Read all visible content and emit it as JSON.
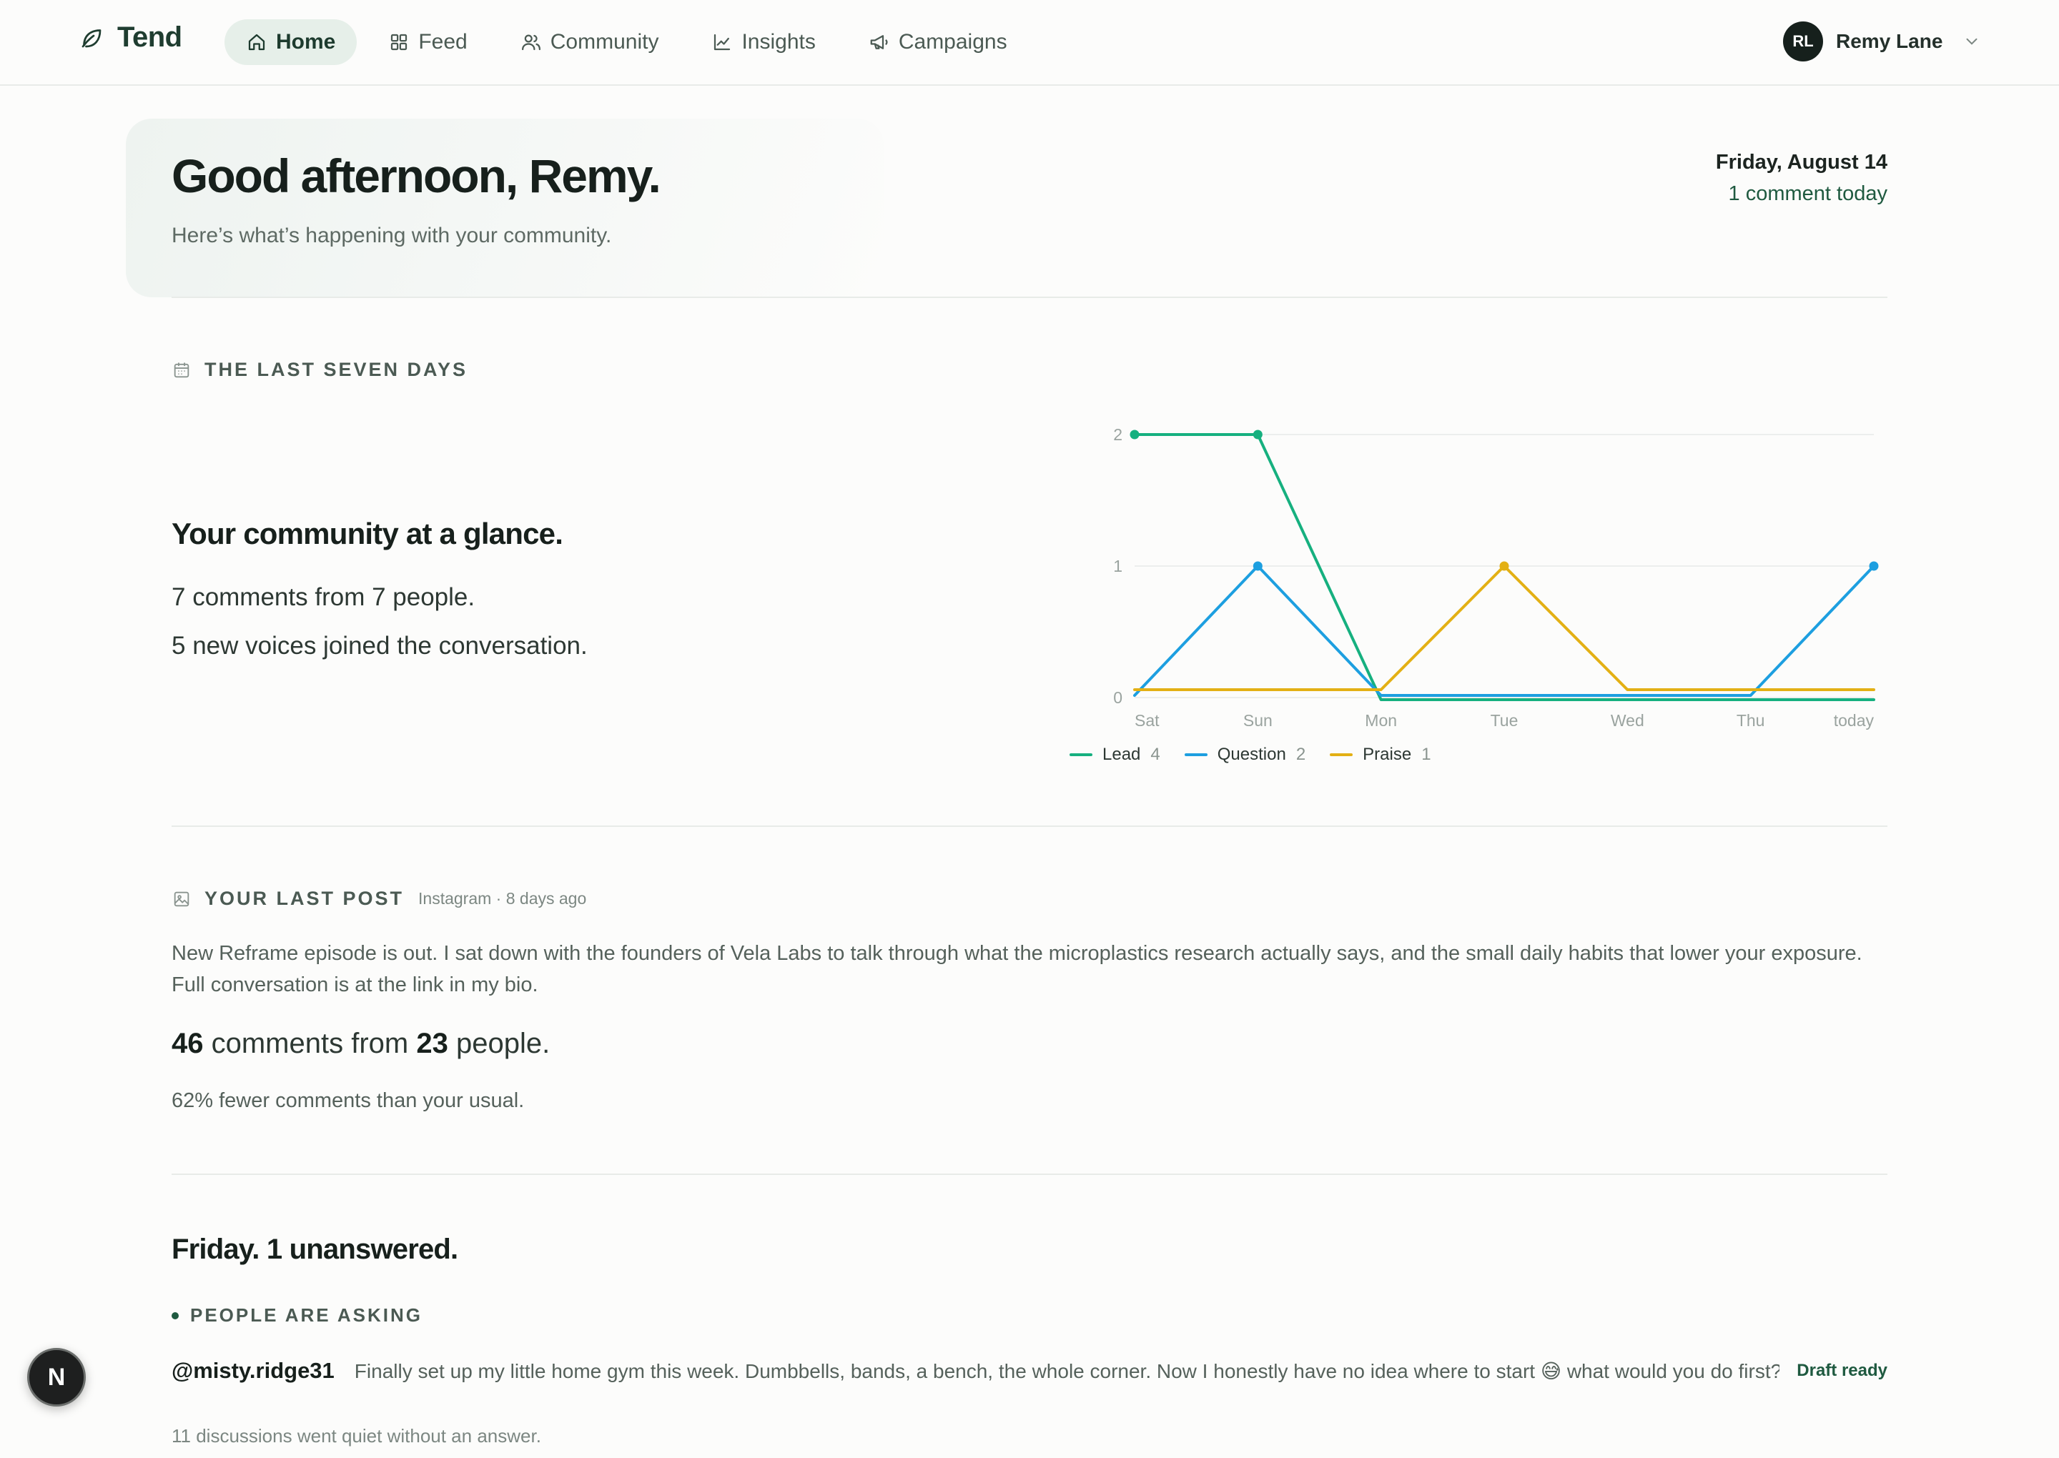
{
  "app": {
    "name": "Tend"
  },
  "nav": {
    "items": [
      {
        "label": "Home",
        "icon": "home-icon",
        "active": true
      },
      {
        "label": "Feed",
        "icon": "grid-icon",
        "active": false
      },
      {
        "label": "Community",
        "icon": "users-icon",
        "active": false
      },
      {
        "label": "Insights",
        "icon": "line-chart-icon",
        "active": false
      },
      {
        "label": "Campaigns",
        "icon": "megaphone-icon",
        "active": false
      }
    ]
  },
  "user": {
    "initials": "RL",
    "name": "Remy Lane"
  },
  "greeting": {
    "title": "Good afternoon, Remy.",
    "subtitle": "Here’s what’s happening with your community.",
    "date": "Friday, August 14",
    "today_count": "1 comment today"
  },
  "last_seven_days": {
    "section_title": "THE LAST SEVEN DAYS",
    "headline": "Your community at a glance.",
    "line1": "7 comments from 7 people.",
    "line2": "5 new voices joined the conversation."
  },
  "chart_data": {
    "type": "line",
    "categories": [
      "Sat",
      "Sun",
      "Mon",
      "Tue",
      "Wed",
      "Thu",
      "today"
    ],
    "y_ticks": [
      "0",
      "1",
      "2"
    ],
    "ylim": [
      0,
      2
    ],
    "grid": true,
    "legend_position": "bottom-left",
    "series": [
      {
        "name": "Lead",
        "count": "4",
        "color": "#16b07f",
        "values": [
          2,
          2,
          0,
          0,
          0,
          0,
          0
        ],
        "markers": [
          0,
          1
        ]
      },
      {
        "name": "Question",
        "count": "2",
        "color": "#1d9fe0",
        "values": [
          0,
          1,
          0,
          0,
          0,
          0,
          1
        ],
        "markers": [
          1,
          6
        ]
      },
      {
        "name": "Praise",
        "count": "1",
        "color": "#e3b014",
        "values": [
          0,
          0,
          0,
          1,
          0,
          0,
          0
        ],
        "markers": [
          3
        ]
      }
    ]
  },
  "last_post": {
    "section_title": "YOUR LAST POST",
    "meta": "Instagram · 8 days ago",
    "text": "New Reframe episode is out. I sat down with the founders of Vela Labs to talk through what the microplastics research actually says, and the small daily habits that lower your exposure. Full conversation is at the link in my bio.",
    "comments": "46",
    "comments_word": " comments from ",
    "people": "23",
    "people_word": " people.",
    "delta": "62% fewer comments than your usual."
  },
  "unanswered": {
    "title": "Friday. 1 unanswered.",
    "group_title": "PEOPLE ARE ASKING",
    "questions": [
      {
        "handle": "@misty.ridge31",
        "text": "Finally set up my little home gym this week. Dumbbells, bands, a bench, the whole corner. Now I honestly have no idea where to start 😅 what would you do first?",
        "status": "Draft ready"
      }
    ],
    "quiet_note": "11 discussions went quiet without an answer."
  },
  "fab": {
    "label": "N"
  }
}
